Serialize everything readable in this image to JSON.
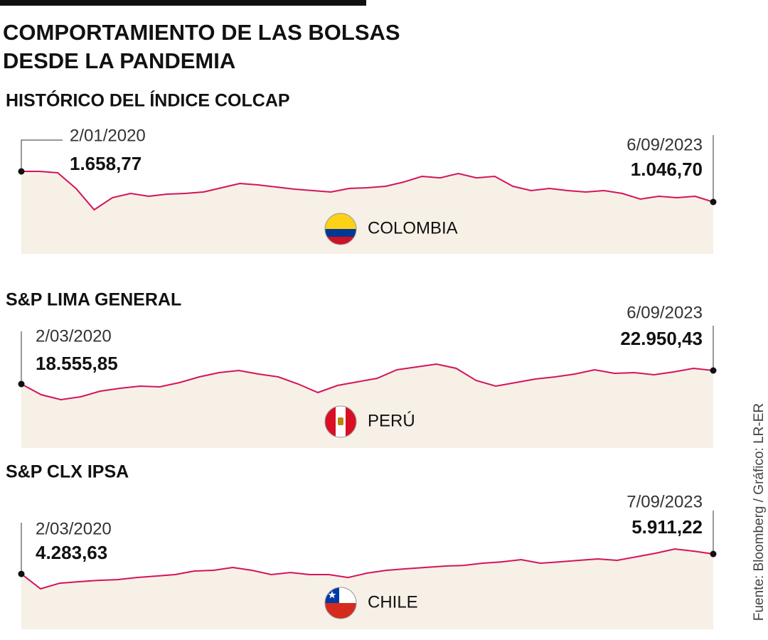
{
  "title": "COMPORTAMIENTO DE LAS BOLSAS DESDE LA PANDEMIA",
  "source": "Fuente: Bloomberg / Gráfico: LR-ER",
  "chart_data": [
    {
      "type": "line",
      "title": "HISTÓRICO DEL ÍNDICE COLCAP",
      "annotation": "COLOMBIA",
      "color": "#d4145a",
      "categories": [
        "2/01/2020",
        null,
        null,
        null,
        null,
        null,
        null,
        null,
        null,
        null,
        null,
        null,
        null,
        null,
        null,
        null,
        null,
        null,
        null,
        null,
        null,
        null,
        null,
        null,
        null,
        null,
        null,
        null,
        null,
        null,
        null,
        null,
        null,
        null,
        null,
        null,
        null,
        null,
        "6/09/2023"
      ],
      "values": [
        1658.77,
        1659,
        1630,
        1317,
        890,
        1132,
        1217,
        1160,
        1203,
        1217,
        1246,
        1331,
        1417,
        1388,
        1346,
        1303,
        1274,
        1246,
        1317,
        1331,
        1360,
        1445,
        1559,
        1530,
        1616,
        1530,
        1559,
        1360,
        1274,
        1317,
        1274,
        1246,
        1274,
        1217,
        1104,
        1160,
        1132,
        1160,
        1046.7
      ],
      "value_labels": [
        "1.658,77",
        null,
        null,
        null,
        null,
        null,
        null,
        null,
        null,
        null,
        null,
        null,
        null,
        null,
        null,
        null,
        null,
        null,
        null,
        null,
        null,
        null,
        null,
        null,
        null,
        null,
        null,
        null,
        null,
        null,
        null,
        null,
        null,
        null,
        null,
        null,
        null,
        null,
        "1.046,70"
      ]
    },
    {
      "type": "line",
      "title": "S&P LIMA GENERAL",
      "annotation": "PERÚ",
      "color": "#d4145a",
      "categories": [
        "2/03/2020",
        null,
        null,
        null,
        null,
        null,
        null,
        null,
        null,
        null,
        null,
        null,
        null,
        null,
        null,
        null,
        null,
        null,
        null,
        null,
        null,
        null,
        null,
        null,
        null,
        null,
        null,
        null,
        null,
        null,
        null,
        null,
        null,
        null,
        null,
        "6/09/2023"
      ],
      "values": [
        18555.85,
        15100,
        13480,
        14400,
        16250,
        17180,
        17870,
        17640,
        19020,
        20870,
        22260,
        22950,
        21800,
        20870,
        18560,
        15790,
        18100,
        19260,
        20410,
        23180,
        24110,
        25030,
        23640,
        19720,
        17870,
        19020,
        20180,
        20870,
        21800,
        23180,
        22030,
        22260,
        21560,
        22490,
        23640,
        22950.43
      ],
      "value_labels": [
        "18.555,85",
        null,
        null,
        null,
        null,
        null,
        null,
        null,
        null,
        null,
        null,
        null,
        null,
        null,
        null,
        null,
        null,
        null,
        null,
        null,
        null,
        null,
        null,
        null,
        null,
        null,
        null,
        null,
        null,
        null,
        null,
        null,
        null,
        null,
        null,
        "22.950,43"
      ]
    },
    {
      "type": "line",
      "title": "S&P CLX IPSA",
      "annotation": "CHILE",
      "color": "#d4145a",
      "categories": [
        "2/03/2020",
        null,
        null,
        null,
        null,
        null,
        null,
        null,
        null,
        null,
        null,
        null,
        null,
        null,
        null,
        null,
        null,
        null,
        null,
        null,
        null,
        null,
        null,
        null,
        null,
        null,
        null,
        null,
        null,
        null,
        null,
        null,
        null,
        null,
        null,
        null,
        "7/09/2023"
      ],
      "values": [
        4283.63,
        3070,
        3530,
        3650,
        3760,
        3820,
        3990,
        4110,
        4230,
        4520,
        4580,
        4810,
        4580,
        4230,
        4400,
        4230,
        4230,
        3990,
        4350,
        4580,
        4700,
        4810,
        4920,
        4980,
        5160,
        5270,
        5450,
        5160,
        5270,
        5390,
        5510,
        5390,
        5680,
        5970,
        6320,
        6140,
        5911.22
      ],
      "value_labels": [
        "4.283,63",
        null,
        null,
        null,
        null,
        null,
        null,
        null,
        null,
        null,
        null,
        null,
        null,
        null,
        null,
        null,
        null,
        null,
        null,
        null,
        null,
        null,
        null,
        null,
        null,
        null,
        null,
        null,
        null,
        null,
        null,
        null,
        null,
        null,
        null,
        null,
        "5.911,22"
      ]
    }
  ]
}
